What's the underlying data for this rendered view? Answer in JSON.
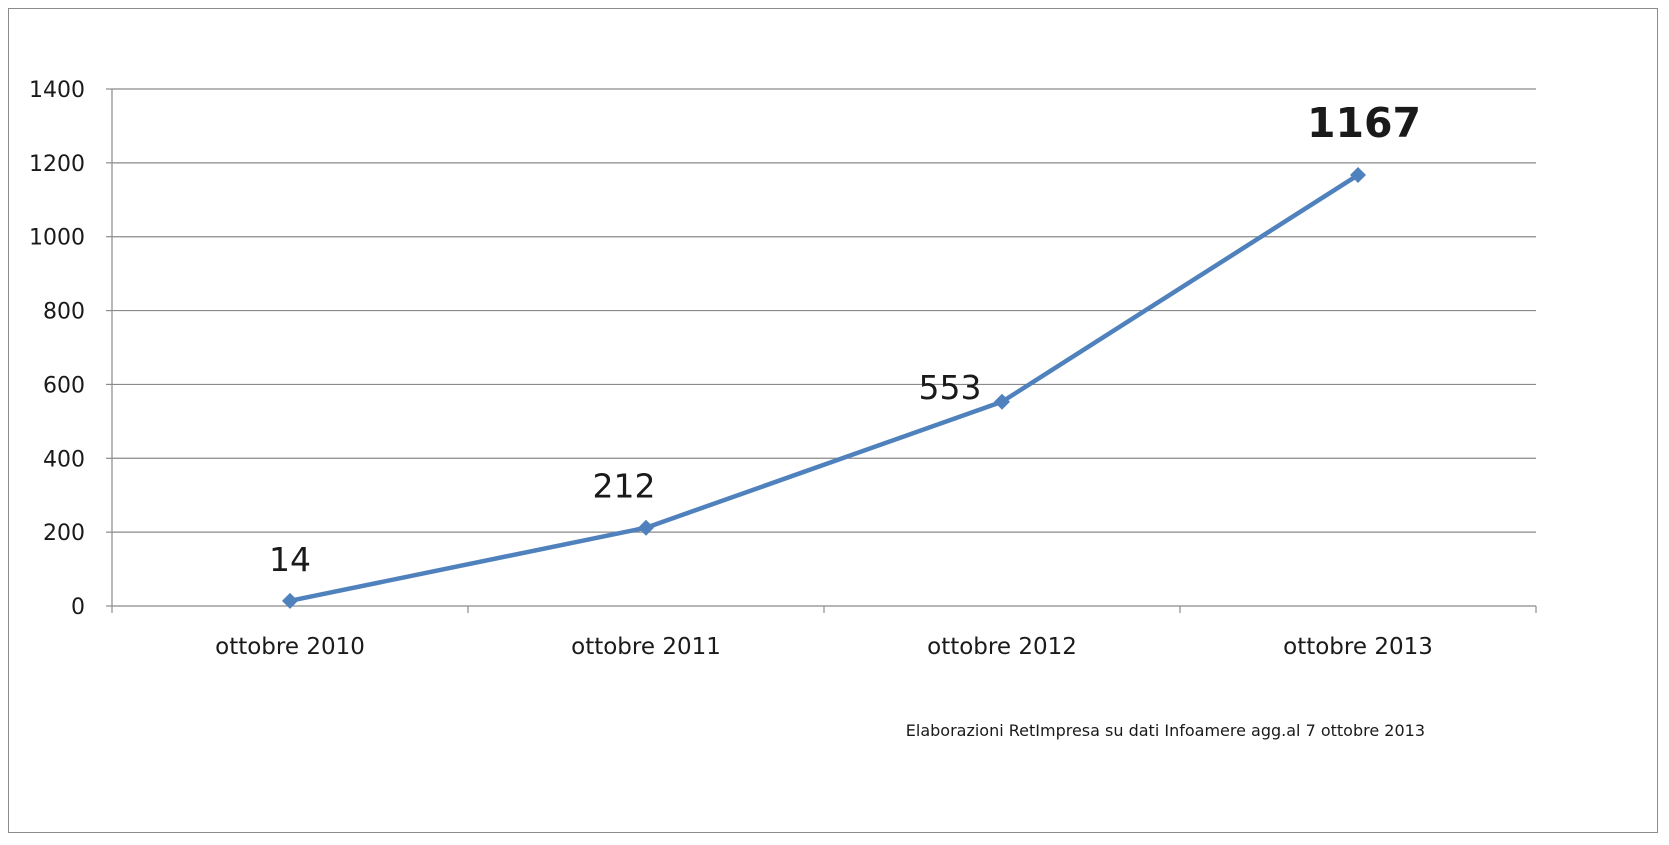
{
  "chart_data": {
    "type": "line",
    "categories": [
      "ottobre 2010",
      "ottobre 2011",
      "ottobre 2012",
      "ottobre 2013"
    ],
    "series": [
      {
        "values": [
          14,
          212,
          553,
          1167
        ],
        "color": "#4f81bd",
        "marker": "diamond"
      }
    ],
    "data_labels": [
      "14",
      "212",
      "553",
      "1167"
    ],
    "highlight_color": "#e00000",
    "yticks": [
      "0",
      "200",
      "400",
      "600",
      "800",
      "1000",
      "1200",
      "1400"
    ],
    "ylim": [
      0,
      1400
    ],
    "grid": true,
    "title": "",
    "xlabel": "",
    "ylabel": ""
  },
  "footnote": "Elaborazioni RetImpresa su dati Infoamere agg.al 7 ottobre 2013"
}
